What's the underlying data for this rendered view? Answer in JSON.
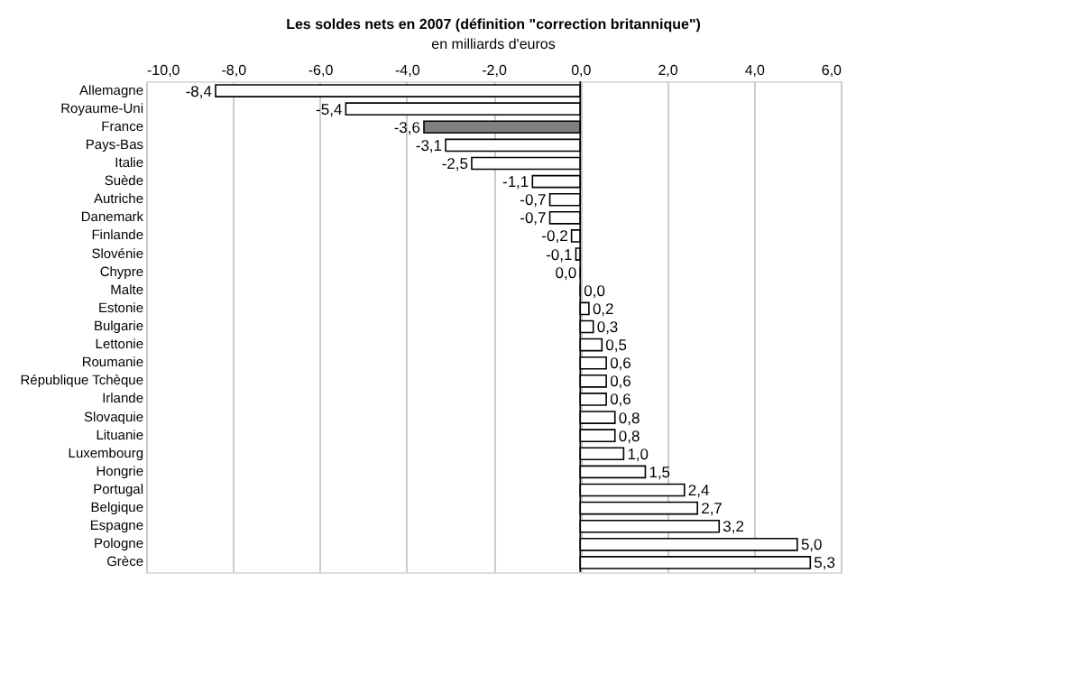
{
  "chart_data": {
    "type": "bar",
    "orientation": "horizontal",
    "title": "Les soldes nets en 2007 (définition \"correction britannique\")",
    "subtitle": "en milliards d'euros",
    "categories": [
      "Allemagne",
      "Royaume-Uni",
      "France",
      "Pays-Bas",
      "Italie",
      "Suède",
      "Autriche",
      "Danemark",
      "Finlande",
      "Slovénie",
      "Chypre",
      "Malte",
      "Estonie",
      "Bulgarie",
      "Lettonie",
      "Roumanie",
      "République Tchèque",
      "Irlande",
      "Slovaquie",
      "Lituanie",
      "Luxembourg",
      "Hongrie",
      "Portugal",
      "Belgique",
      "Espagne",
      "Pologne",
      "Grèce"
    ],
    "values": [
      -8.4,
      -5.4,
      -3.6,
      -3.1,
      -2.5,
      -1.1,
      -0.7,
      -0.7,
      -0.2,
      -0.1,
      -0.0,
      0.0,
      0.2,
      0.3,
      0.5,
      0.6,
      0.6,
      0.6,
      0.8,
      0.8,
      1.0,
      1.5,
      2.4,
      2.7,
      3.2,
      5.0,
      5.3
    ],
    "value_labels": [
      "-8,4",
      "-5,4",
      "-3,6",
      "-3,1",
      "-2,5",
      "-1,1",
      "-0,7",
      "-0,7",
      "-0,2",
      "-0,1",
      "0,0",
      "0,0",
      "0,2",
      "0,3",
      "0,5",
      "0,6",
      "0,6",
      "0,6",
      "0,8",
      "0,8",
      "1,0",
      "1,5",
      "2,4",
      "2,7",
      "3,2",
      "5,0",
      "5,3"
    ],
    "colors": [
      "#ffffff",
      "#ffffff",
      "#808080",
      "#ffffff",
      "#ffffff",
      "#ffffff",
      "#ffffff",
      "#ffffff",
      "#ffffff",
      "#ffffff",
      "#000000",
      "#000000",
      "#ffffff",
      "#ffffff",
      "#ffffff",
      "#ffffff",
      "#ffffff",
      "#ffffff",
      "#ffffff",
      "#ffffff",
      "#ffffff",
      "#ffffff",
      "#ffffff",
      "#ffffff",
      "#ffffff",
      "#ffffff",
      "#ffffff"
    ],
    "xlim": [
      -10,
      6
    ],
    "xticks": [
      {
        "value": -10,
        "label": "-10,0"
      },
      {
        "value": -8,
        "label": "-8,0"
      },
      {
        "value": -6,
        "label": "-6,0"
      },
      {
        "value": -4,
        "label": "-4,0"
      },
      {
        "value": -2,
        "label": "-2,0"
      },
      {
        "value": 0,
        "label": "0,0"
      },
      {
        "value": 2,
        "label": "2,0"
      },
      {
        "value": 4,
        "label": "4,0"
      },
      {
        "value": 6,
        "label": "6,0"
      }
    ],
    "grid": true
  }
}
